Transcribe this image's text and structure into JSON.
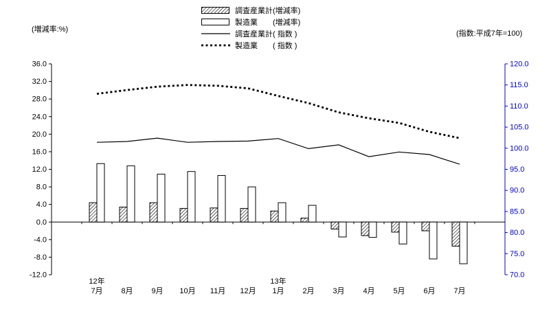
{
  "labels": {
    "left_unit": "(増減率:%)",
    "right_unit": "(指数:平成7年=100)"
  },
  "legend": {
    "position": "top-center",
    "items": [
      {
        "label": "調査産業計(増減率)",
        "swatch": "hatched-bar"
      },
      {
        "label": "製造業　　(増減率)",
        "swatch": "white-bar"
      },
      {
        "label": "調査産業計( 指数 )",
        "swatch": "solid-line"
      },
      {
        "label": "製造業　　( 指数 )",
        "swatch": "dashed-line"
      }
    ]
  },
  "chart_data": {
    "type": "bar",
    "subtype": "bar-line-combo-dual-axis",
    "title": "",
    "grid": false,
    "legend_position": "top-center",
    "categories": [
      "7月",
      "8月",
      "9月",
      "10月",
      "11月",
      "12月",
      "1月",
      "2月",
      "3月",
      "4月",
      "5月",
      "6月",
      "7月"
    ],
    "year_markers": [
      {
        "index": 0,
        "label": "12年"
      },
      {
        "index": 6,
        "label": "13年"
      }
    ],
    "left_axis": {
      "label": "(増減率:%)",
      "min": -12.0,
      "max": 36.0,
      "step": 4.0,
      "color": "#000000"
    },
    "right_axis": {
      "label": "(指数:平成7年=100)",
      "min": 70.0,
      "max": 120.0,
      "step": 5.0,
      "color": "#0000cc"
    },
    "series": [
      {
        "name": "調査産業計(増減率)",
        "type": "bar",
        "style": "hatched",
        "axis": "left",
        "values": [
          4.4,
          3.4,
          4.4,
          3.1,
          3.2,
          3.1,
          2.5,
          0.9,
          -1.6,
          -3.1,
          -2.3,
          -2.0,
          -5.5
        ]
      },
      {
        "name": "製造業(増減率)",
        "type": "bar",
        "style": "white",
        "axis": "left",
        "values": [
          13.3,
          12.8,
          10.9,
          11.5,
          10.6,
          8.0,
          4.4,
          3.8,
          -3.4,
          -3.5,
          -5.0,
          -8.4,
          -9.5
        ]
      },
      {
        "name": "調査産業計(指数)",
        "type": "line",
        "style": "solid",
        "axis": "right",
        "values": [
          101.4,
          101.6,
          102.4,
          101.4,
          101.6,
          101.7,
          102.3,
          99.9,
          100.8,
          98.0,
          99.1,
          98.5,
          96.2
        ]
      },
      {
        "name": "製造業(指数)",
        "type": "line",
        "style": "dashed",
        "axis": "right",
        "values": [
          112.9,
          113.8,
          114.6,
          115.0,
          114.8,
          114.2,
          112.4,
          110.7,
          108.5,
          107.1,
          106.0,
          103.9,
          102.4
        ]
      }
    ]
  }
}
